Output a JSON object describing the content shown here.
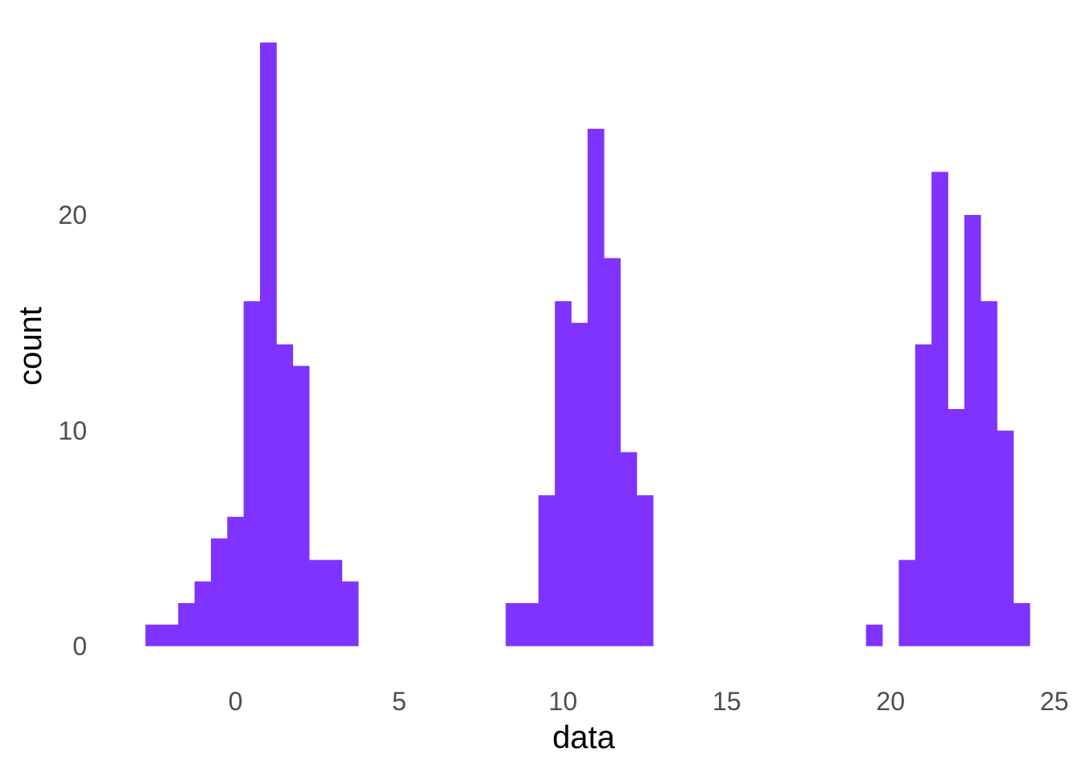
{
  "chart_data": {
    "type": "bar",
    "subtype": "histogram",
    "title": "",
    "xlabel": "data",
    "ylabel": "count",
    "bar_color": "#8033FF",
    "background": "#FFFFFF",
    "grid": false,
    "legend": "none",
    "xlim": [
      -3.6,
      25.5
    ],
    "ylim": [
      -1.4,
      29.3
    ],
    "x_ticks": [
      0,
      5,
      10,
      15,
      20,
      25
    ],
    "y_ticks": [
      0,
      10,
      20
    ],
    "bins": [
      {
        "x0": -2.75,
        "x1": -1.75,
        "count": 1
      },
      {
        "x0": -1.75,
        "x1": -1.25,
        "count": 2
      },
      {
        "x0": -1.25,
        "x1": -0.75,
        "count": 3
      },
      {
        "x0": -0.75,
        "x1": -0.25,
        "count": 5
      },
      {
        "x0": -0.25,
        "x1": 0.25,
        "count": 6
      },
      {
        "x0": 0.25,
        "x1": 0.75,
        "count": 16
      },
      {
        "x0": 0.75,
        "x1": 1.25,
        "count": 28
      },
      {
        "x0": 1.25,
        "x1": 1.75,
        "count": 14
      },
      {
        "x0": 1.75,
        "x1": 2.25,
        "count": 13
      },
      {
        "x0": 2.25,
        "x1": 3.25,
        "count": 4
      },
      {
        "x0": 3.25,
        "x1": 3.75,
        "count": 3
      },
      {
        "x0": 8.25,
        "x1": 9.25,
        "count": 2
      },
      {
        "x0": 9.25,
        "x1": 9.75,
        "count": 7
      },
      {
        "x0": 9.75,
        "x1": 10.25,
        "count": 16
      },
      {
        "x0": 10.25,
        "x1": 10.75,
        "count": 15
      },
      {
        "x0": 10.75,
        "x1": 11.25,
        "count": 24
      },
      {
        "x0": 11.25,
        "x1": 11.75,
        "count": 18
      },
      {
        "x0": 11.75,
        "x1": 12.25,
        "count": 9
      },
      {
        "x0": 12.25,
        "x1": 12.75,
        "count": 7
      },
      {
        "x0": 19.25,
        "x1": 19.75,
        "count": 1
      },
      {
        "x0": 20.25,
        "x1": 20.75,
        "count": 4
      },
      {
        "x0": 20.75,
        "x1": 21.25,
        "count": 14
      },
      {
        "x0": 21.25,
        "x1": 21.75,
        "count": 22
      },
      {
        "x0": 21.75,
        "x1": 22.25,
        "count": 11
      },
      {
        "x0": 22.25,
        "x1": 22.75,
        "count": 20
      },
      {
        "x0": 22.75,
        "x1": 23.25,
        "count": 16
      },
      {
        "x0": 23.25,
        "x1": 23.75,
        "count": 10
      },
      {
        "x0": 23.75,
        "x1": 24.25,
        "count": 2
      }
    ]
  }
}
